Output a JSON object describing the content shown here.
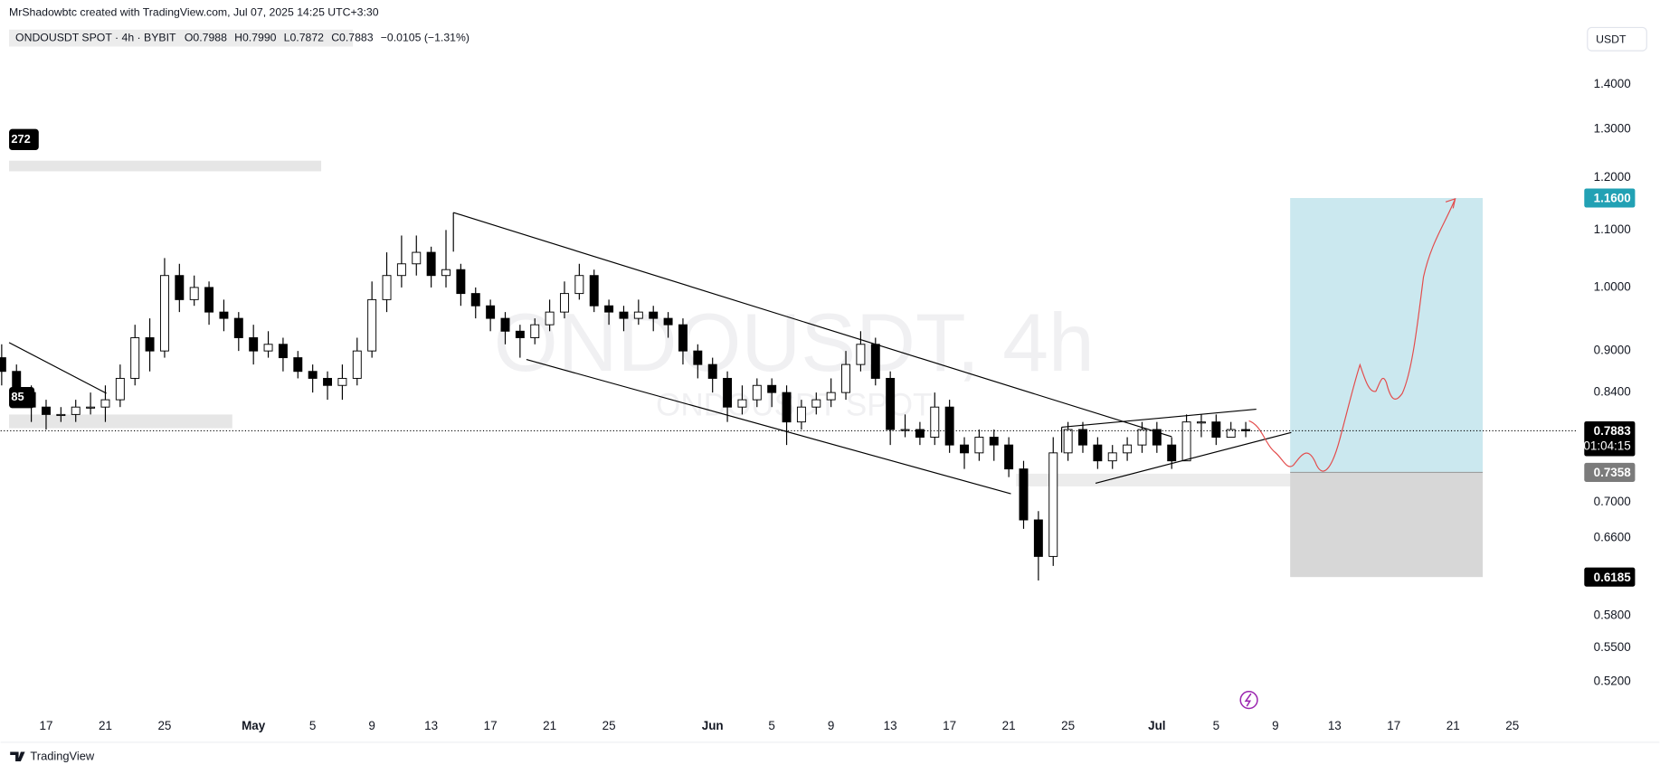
{
  "chart_data": {
    "type": "candlestick",
    "subtitle": "MrShadowbtc created with TradingView.com, Jul 07, 2025 14:25 UTC+3:30",
    "title": "ONDOUSDT SPOT · 4h · BYBIT",
    "legend_values": [
      {
        "value": 0.7988,
        "label": "O0.7988"
      },
      {
        "value": 0.799,
        "label": "H0.7990"
      },
      {
        "value": 0.7872,
        "label": "L0.7872"
      },
      {
        "value": 0.7883,
        "label": "C0.7883"
      },
      {
        "value": -0.0105,
        "label": "−0.0105 (−1.31%)"
      }
    ],
    "currency": "USDT",
    "watermark": "ONDOUSDT, 4h",
    "watermark_sub": "ONDOUSDT SPOT",
    "cut_labels": [
      "272",
      "85"
    ],
    "countdown": "01:04:15",
    "footer": "TradingView",
    "log_scale": true,
    "x": [
      "2025-04-14",
      "2025-04-15",
      "2025-04-16",
      "2025-04-17",
      "2025-04-18",
      "2025-04-19",
      "2025-04-20",
      "2025-04-21",
      "2025-04-22",
      "2025-04-23",
      "2025-04-24",
      "2025-04-25",
      "2025-04-26",
      "2025-04-27",
      "2025-04-28",
      "2025-04-29",
      "2025-04-30",
      "2025-05-01",
      "2025-05-02",
      "2025-05-03",
      "2025-05-04",
      "2025-05-05",
      "2025-05-06",
      "2025-05-07",
      "2025-05-08",
      "2025-05-09",
      "2025-05-10",
      "2025-05-11",
      "2025-05-12",
      "2025-05-13",
      "2025-05-14",
      "2025-05-15",
      "2025-05-16",
      "2025-05-17",
      "2025-05-18",
      "2025-05-19",
      "2025-05-20",
      "2025-05-21",
      "2025-05-22",
      "2025-05-23",
      "2025-05-24",
      "2025-05-25",
      "2025-05-26",
      "2025-05-27",
      "2025-05-28",
      "2025-05-29",
      "2025-05-30",
      "2025-05-31",
      "2025-06-01",
      "2025-06-02",
      "2025-06-03",
      "2025-06-04",
      "2025-06-05",
      "2025-06-06",
      "2025-06-07",
      "2025-06-08",
      "2025-06-09",
      "2025-06-10",
      "2025-06-11",
      "2025-06-12",
      "2025-06-13",
      "2025-06-14",
      "2025-06-15",
      "2025-06-16",
      "2025-06-17",
      "2025-06-18",
      "2025-06-19",
      "2025-06-20",
      "2025-06-21",
      "2025-06-22",
      "2025-06-23",
      "2025-06-24",
      "2025-06-25",
      "2025-06-26",
      "2025-06-27",
      "2025-06-28",
      "2025-06-29",
      "2025-06-30",
      "2025-07-01",
      "2025-07-02",
      "2025-07-03",
      "2025-07-04",
      "2025-07-05",
      "2025-07-06",
      "2025-07-07"
    ],
    "open": [
      0.89,
      0.87,
      0.84,
      0.82,
      0.81,
      0.81,
      0.82,
      0.82,
      0.83,
      0.86,
      0.92,
      0.9,
      1.02,
      0.98,
      1.0,
      0.96,
      0.95,
      0.92,
      0.9,
      0.91,
      0.89,
      0.87,
      0.86,
      0.85,
      0.86,
      0.9,
      0.98,
      1.02,
      1.04,
      1.06,
      1.02,
      1.03,
      0.99,
      0.97,
      0.95,
      0.93,
      0.92,
      0.94,
      0.96,
      0.99,
      1.02,
      0.97,
      0.96,
      0.95,
      0.96,
      0.95,
      0.94,
      0.9,
      0.88,
      0.86,
      0.82,
      0.83,
      0.85,
      0.84,
      0.8,
      0.82,
      0.83,
      0.84,
      0.88,
      0.91,
      0.86,
      0.79,
      0.79,
      0.78,
      0.82,
      0.77,
      0.76,
      0.78,
      0.77,
      0.74,
      0.68,
      0.64,
      0.76,
      0.79,
      0.77,
      0.75,
      0.76,
      0.77,
      0.79,
      0.77,
      0.75,
      0.8,
      0.8,
      0.78,
      0.79
    ],
    "high": [
      0.91,
      0.88,
      0.85,
      0.83,
      0.82,
      0.83,
      0.84,
      0.85,
      0.88,
      0.94,
      0.95,
      1.05,
      1.04,
      1.02,
      1.01,
      0.98,
      0.96,
      0.94,
      0.93,
      0.92,
      0.9,
      0.88,
      0.87,
      0.88,
      0.92,
      1.01,
      1.06,
      1.09,
      1.09,
      1.07,
      1.1,
      1.04,
      1.0,
      0.98,
      0.96,
      0.94,
      0.95,
      0.98,
      1.01,
      1.04,
      1.03,
      0.98,
      0.97,
      0.98,
      0.97,
      0.96,
      0.95,
      0.91,
      0.89,
      0.87,
      0.85,
      0.86,
      0.86,
      0.85,
      0.83,
      0.84,
      0.86,
      0.9,
      0.93,
      0.92,
      0.87,
      0.81,
      0.8,
      0.84,
      0.83,
      0.78,
      0.79,
      0.79,
      0.78,
      0.75,
      0.69,
      0.78,
      0.8,
      0.8,
      0.78,
      0.77,
      0.78,
      0.8,
      0.8,
      0.78,
      0.81,
      0.81,
      0.81,
      0.8,
      0.8
    ],
    "low": [
      0.85,
      0.82,
      0.8,
      0.79,
      0.8,
      0.8,
      0.81,
      0.8,
      0.82,
      0.85,
      0.87,
      0.89,
      0.96,
      0.97,
      0.94,
      0.93,
      0.9,
      0.88,
      0.89,
      0.87,
      0.86,
      0.84,
      0.83,
      0.83,
      0.85,
      0.89,
      0.96,
      1.0,
      1.02,
      1.0,
      1.0,
      0.97,
      0.95,
      0.93,
      0.91,
      0.89,
      0.91,
      0.93,
      0.95,
      0.98,
      0.96,
      0.94,
      0.93,
      0.94,
      0.93,
      0.92,
      0.88,
      0.86,
      0.84,
      0.8,
      0.81,
      0.82,
      0.82,
      0.77,
      0.79,
      0.81,
      0.82,
      0.83,
      0.87,
      0.85,
      0.77,
      0.78,
      0.77,
      0.77,
      0.76,
      0.74,
      0.75,
      0.75,
      0.73,
      0.67,
      0.615,
      0.63,
      0.75,
      0.76,
      0.74,
      0.74,
      0.75,
      0.76,
      0.76,
      0.74,
      0.75,
      0.78,
      0.77,
      0.78,
      0.78
    ],
    "close": [
      0.87,
      0.84,
      0.82,
      0.81,
      0.81,
      0.82,
      0.82,
      0.83,
      0.86,
      0.92,
      0.9,
      1.02,
      0.98,
      1.0,
      0.96,
      0.95,
      0.92,
      0.9,
      0.91,
      0.89,
      0.87,
      0.86,
      0.85,
      0.86,
      0.9,
      0.98,
      1.02,
      1.04,
      1.06,
      1.02,
      1.03,
      0.99,
      0.97,
      0.95,
      0.93,
      0.92,
      0.94,
      0.96,
      0.99,
      1.02,
      0.97,
      0.96,
      0.95,
      0.96,
      0.95,
      0.94,
      0.9,
      0.88,
      0.86,
      0.82,
      0.83,
      0.85,
      0.84,
      0.8,
      0.82,
      0.83,
      0.84,
      0.88,
      0.91,
      0.86,
      0.79,
      0.79,
      0.78,
      0.82,
      0.77,
      0.76,
      0.78,
      0.77,
      0.74,
      0.68,
      0.64,
      0.76,
      0.79,
      0.77,
      0.75,
      0.76,
      0.77,
      0.79,
      0.77,
      0.75,
      0.8,
      0.8,
      0.78,
      0.79,
      0.7883
    ],
    "up_color": "#ffffff",
    "down_color": "#000000",
    "wick_color": "#000000",
    "xlim": [
      "2025-04-14",
      "2025-07-29"
    ],
    "xticks": [
      {
        "value": "2025-04-17",
        "label": "17"
      },
      {
        "value": "2025-04-21",
        "label": "21"
      },
      {
        "value": "2025-04-25",
        "label": "25"
      },
      {
        "value": "2025-05-01",
        "label": "May"
      },
      {
        "value": "2025-05-05",
        "label": "5"
      },
      {
        "value": "2025-05-09",
        "label": "9"
      },
      {
        "value": "2025-05-13",
        "label": "13"
      },
      {
        "value": "2025-05-17",
        "label": "17"
      },
      {
        "value": "2025-05-21",
        "label": "21"
      },
      {
        "value": "2025-05-25",
        "label": "25"
      },
      {
        "value": "2025-06-01",
        "label": "Jun"
      },
      {
        "value": "2025-06-05",
        "label": "5"
      },
      {
        "value": "2025-06-09",
        "label": "9"
      },
      {
        "value": "2025-06-13",
        "label": "13"
      },
      {
        "value": "2025-06-17",
        "label": "17"
      },
      {
        "value": "2025-06-21",
        "label": "21"
      },
      {
        "value": "2025-06-25",
        "label": "25"
      },
      {
        "value": "2025-07-01",
        "label": "Jul"
      },
      {
        "value": "2025-07-05",
        "label": "5"
      },
      {
        "value": "2025-07-09",
        "label": "9"
      },
      {
        "value": "2025-07-13",
        "label": "13"
      },
      {
        "value": "2025-07-17",
        "label": "17"
      },
      {
        "value": "2025-07-21",
        "label": "21"
      },
      {
        "value": "2025-07-25",
        "label": "25"
      }
    ],
    "ylim": [
      0.493,
      1.542
    ],
    "yticks": [
      {
        "value": 1.4,
        "label": "1.4000"
      },
      {
        "value": 1.3,
        "label": "1.3000"
      },
      {
        "value": 1.2,
        "label": "1.2000"
      },
      {
        "value": 1.1,
        "label": "1.1000"
      },
      {
        "value": 1.0,
        "label": "1.0000"
      },
      {
        "value": 0.9,
        "label": "0.9000"
      },
      {
        "value": 0.84,
        "label": "0.8400"
      },
      {
        "value": 0.7,
        "label": "0.7000"
      },
      {
        "value": 0.66,
        "label": "0.6600"
      },
      {
        "value": 0.58,
        "label": "0.5800"
      },
      {
        "value": 0.55,
        "label": "0.5500"
      },
      {
        "value": 0.52,
        "label": "0.5200"
      }
    ],
    "price_labels": [
      {
        "value": 1.16,
        "label": "1.1600",
        "color": "#22a1b4"
      },
      {
        "value": 0.7883,
        "label": "0.7883",
        "color": "#000000"
      },
      {
        "value": 0.7358,
        "label": "0.7358",
        "color": "#7b7b7b"
      },
      {
        "value": 0.6185,
        "label": "0.6185",
        "color": "#000000"
      }
    ],
    "position": {
      "start": "2025-07-10",
      "end": "2025-07-23",
      "target_color": "#cbe8ef",
      "stop_color": "#d7d7d7"
    }
  }
}
